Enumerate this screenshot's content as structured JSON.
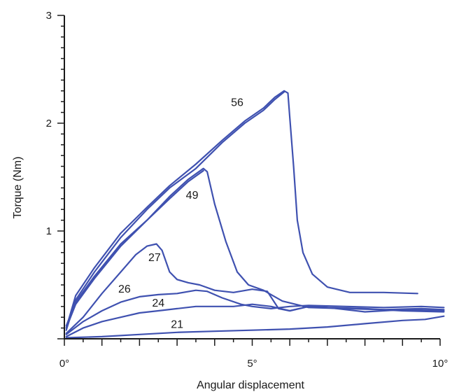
{
  "chart_data": {
    "type": "line",
    "xlabel": "Angular displacement",
    "ylabel": "Torque (Nm)",
    "xlim": [
      0,
      10
    ],
    "ylim": [
      0,
      3
    ],
    "x_ticks": [
      0,
      5,
      10
    ],
    "x_tick_labels": [
      "0°",
      "5°",
      "10°"
    ],
    "y_ticks": [
      1,
      2,
      3
    ],
    "y_tick_labels": [
      "1",
      "2",
      "3"
    ],
    "grid": false,
    "line_color": "#3f51b0",
    "series": [
      {
        "name": "56",
        "points": [
          [
            0.05,
            0.1
          ],
          [
            0.3,
            0.4
          ],
          [
            0.8,
            0.66
          ],
          [
            1.5,
            0.98
          ],
          [
            2.2,
            1.22
          ],
          [
            2.8,
            1.42
          ],
          [
            3.5,
            1.62
          ],
          [
            4.2,
            1.84
          ],
          [
            4.8,
            2.02
          ],
          [
            5.3,
            2.14
          ],
          [
            5.6,
            2.24
          ],
          [
            5.85,
            2.3
          ],
          [
            5.95,
            2.28
          ],
          [
            6.0,
            2.05
          ],
          [
            6.1,
            1.6
          ],
          [
            6.2,
            1.1
          ],
          [
            6.35,
            0.8
          ],
          [
            6.6,
            0.6
          ],
          [
            7.0,
            0.48
          ],
          [
            7.6,
            0.43
          ],
          [
            8.5,
            0.43
          ],
          [
            9.4,
            0.42
          ]
        ]
      },
      {
        "name": "56",
        "points": [
          [
            0.05,
            0.08
          ],
          [
            0.3,
            0.36
          ],
          [
            0.8,
            0.62
          ],
          [
            1.5,
            0.94
          ],
          [
            2.2,
            1.2
          ],
          [
            2.8,
            1.4
          ],
          [
            3.5,
            1.58
          ],
          [
            4.2,
            1.82
          ],
          [
            4.8,
            2.0
          ],
          [
            5.3,
            2.12
          ],
          [
            5.6,
            2.22
          ],
          [
            5.85,
            2.29
          ]
        ]
      },
      {
        "name": "49",
        "points": [
          [
            0.05,
            0.12
          ],
          [
            0.3,
            0.34
          ],
          [
            0.8,
            0.58
          ],
          [
            1.5,
            0.88
          ],
          [
            2.2,
            1.1
          ],
          [
            2.8,
            1.32
          ],
          [
            3.3,
            1.48
          ],
          [
            3.7,
            1.58
          ],
          [
            3.8,
            1.55
          ],
          [
            4.0,
            1.25
          ],
          [
            4.3,
            0.9
          ],
          [
            4.6,
            0.62
          ],
          [
            4.9,
            0.5
          ],
          [
            5.3,
            0.45
          ],
          [
            5.8,
            0.35
          ],
          [
            6.5,
            0.29
          ],
          [
            7.5,
            0.28
          ],
          [
            8.5,
            0.27
          ],
          [
            9.5,
            0.28
          ],
          [
            10.1,
            0.27
          ]
        ]
      },
      {
        "name": "49",
        "points": [
          [
            0.05,
            0.1
          ],
          [
            0.3,
            0.32
          ],
          [
            0.8,
            0.56
          ],
          [
            1.5,
            0.86
          ],
          [
            2.2,
            1.1
          ],
          [
            2.8,
            1.3
          ],
          [
            3.3,
            1.46
          ],
          [
            3.7,
            1.56
          ]
        ]
      },
      {
        "name": "27",
        "points": [
          [
            0.05,
            0.05
          ],
          [
            0.5,
            0.2
          ],
          [
            1.0,
            0.42
          ],
          [
            1.5,
            0.62
          ],
          [
            1.9,
            0.78
          ],
          [
            2.2,
            0.86
          ],
          [
            2.45,
            0.88
          ],
          [
            2.6,
            0.82
          ],
          [
            2.8,
            0.62
          ],
          [
            3.0,
            0.55
          ],
          [
            3.3,
            0.52
          ],
          [
            3.6,
            0.5
          ],
          [
            4.0,
            0.45
          ],
          [
            4.5,
            0.43
          ],
          [
            5.0,
            0.46
          ],
          [
            5.4,
            0.44
          ],
          [
            5.7,
            0.28
          ],
          [
            6.0,
            0.26
          ],
          [
            6.5,
            0.3
          ],
          [
            7.0,
            0.29
          ],
          [
            8.0,
            0.28
          ],
          [
            9.0,
            0.26
          ],
          [
            10.1,
            0.25
          ]
        ]
      },
      {
        "name": "26",
        "points": [
          [
            0.05,
            0.04
          ],
          [
            0.5,
            0.16
          ],
          [
            1.0,
            0.26
          ],
          [
            1.5,
            0.34
          ],
          [
            2.0,
            0.39
          ],
          [
            2.5,
            0.41
          ],
          [
            3.0,
            0.42
          ],
          [
            3.5,
            0.45
          ],
          [
            3.8,
            0.44
          ],
          [
            4.2,
            0.38
          ],
          [
            4.7,
            0.32
          ],
          [
            5.0,
            0.3
          ],
          [
            5.5,
            0.28
          ],
          [
            6.0,
            0.3
          ],
          [
            6.5,
            0.31
          ],
          [
            7.5,
            0.3
          ],
          [
            8.5,
            0.29
          ],
          [
            9.5,
            0.3
          ],
          [
            10.1,
            0.29
          ]
        ]
      },
      {
        "name": "24",
        "points": [
          [
            0.05,
            0.02
          ],
          [
            0.5,
            0.1
          ],
          [
            1.0,
            0.16
          ],
          [
            1.5,
            0.2
          ],
          [
            2.0,
            0.24
          ],
          [
            2.5,
            0.26
          ],
          [
            3.0,
            0.28
          ],
          [
            3.5,
            0.3
          ],
          [
            4.0,
            0.3
          ],
          [
            4.5,
            0.3
          ],
          [
            5.0,
            0.32
          ],
          [
            5.5,
            0.3
          ],
          [
            6.0,
            0.26
          ],
          [
            6.5,
            0.3
          ],
          [
            7.0,
            0.29
          ],
          [
            8.0,
            0.25
          ],
          [
            9.0,
            0.27
          ],
          [
            10.1,
            0.26
          ]
        ]
      },
      {
        "name": "21",
        "points": [
          [
            0.05,
            0.01
          ],
          [
            1.0,
            0.02
          ],
          [
            2.0,
            0.04
          ],
          [
            3.0,
            0.06
          ],
          [
            4.0,
            0.07
          ],
          [
            5.0,
            0.08
          ],
          [
            6.0,
            0.09
          ],
          [
            7.0,
            0.11
          ],
          [
            8.0,
            0.14
          ],
          [
            9.0,
            0.17
          ],
          [
            9.6,
            0.18
          ],
          [
            10.1,
            0.21
          ]
        ]
      }
    ],
    "curve_labels": [
      {
        "text": "56",
        "x": 4.6,
        "y": 2.16
      },
      {
        "text": "49",
        "x": 3.4,
        "y": 1.3
      },
      {
        "text": "27",
        "x": 2.4,
        "y": 0.72
      },
      {
        "text": "26",
        "x": 1.6,
        "y": 0.43
      },
      {
        "text": "24",
        "x": 2.5,
        "y": 0.3
      },
      {
        "text": "21",
        "x": 3.0,
        "y": 0.1
      }
    ]
  }
}
